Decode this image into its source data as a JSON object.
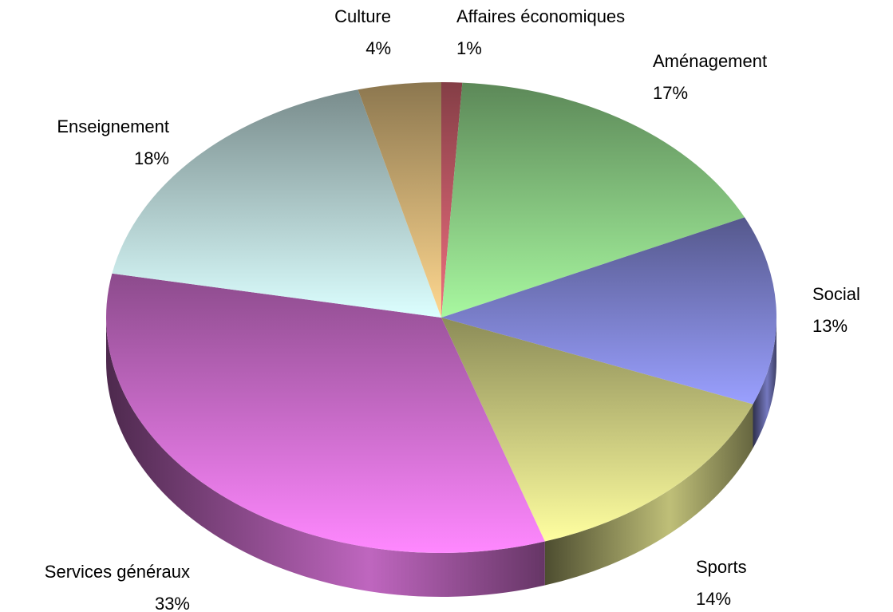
{
  "chart_data": {
    "type": "pie3d",
    "categories": [
      "Affaires économiques",
      "Aménagement",
      "Social",
      "Sports",
      "Services généraux",
      "Enseignement",
      "Culture"
    ],
    "values": [
      1,
      17,
      13,
      14,
      33,
      18,
      4
    ],
    "value_labels": [
      "1%",
      "17%",
      "13%",
      "14%",
      "33%",
      "18%",
      "4%"
    ],
    "colors": [
      "#f07080",
      "#a8f8a0",
      "#9aa0ff",
      "#ffffa0",
      "#ff88ff",
      "#dcffff",
      "#ffd890"
    ]
  }
}
